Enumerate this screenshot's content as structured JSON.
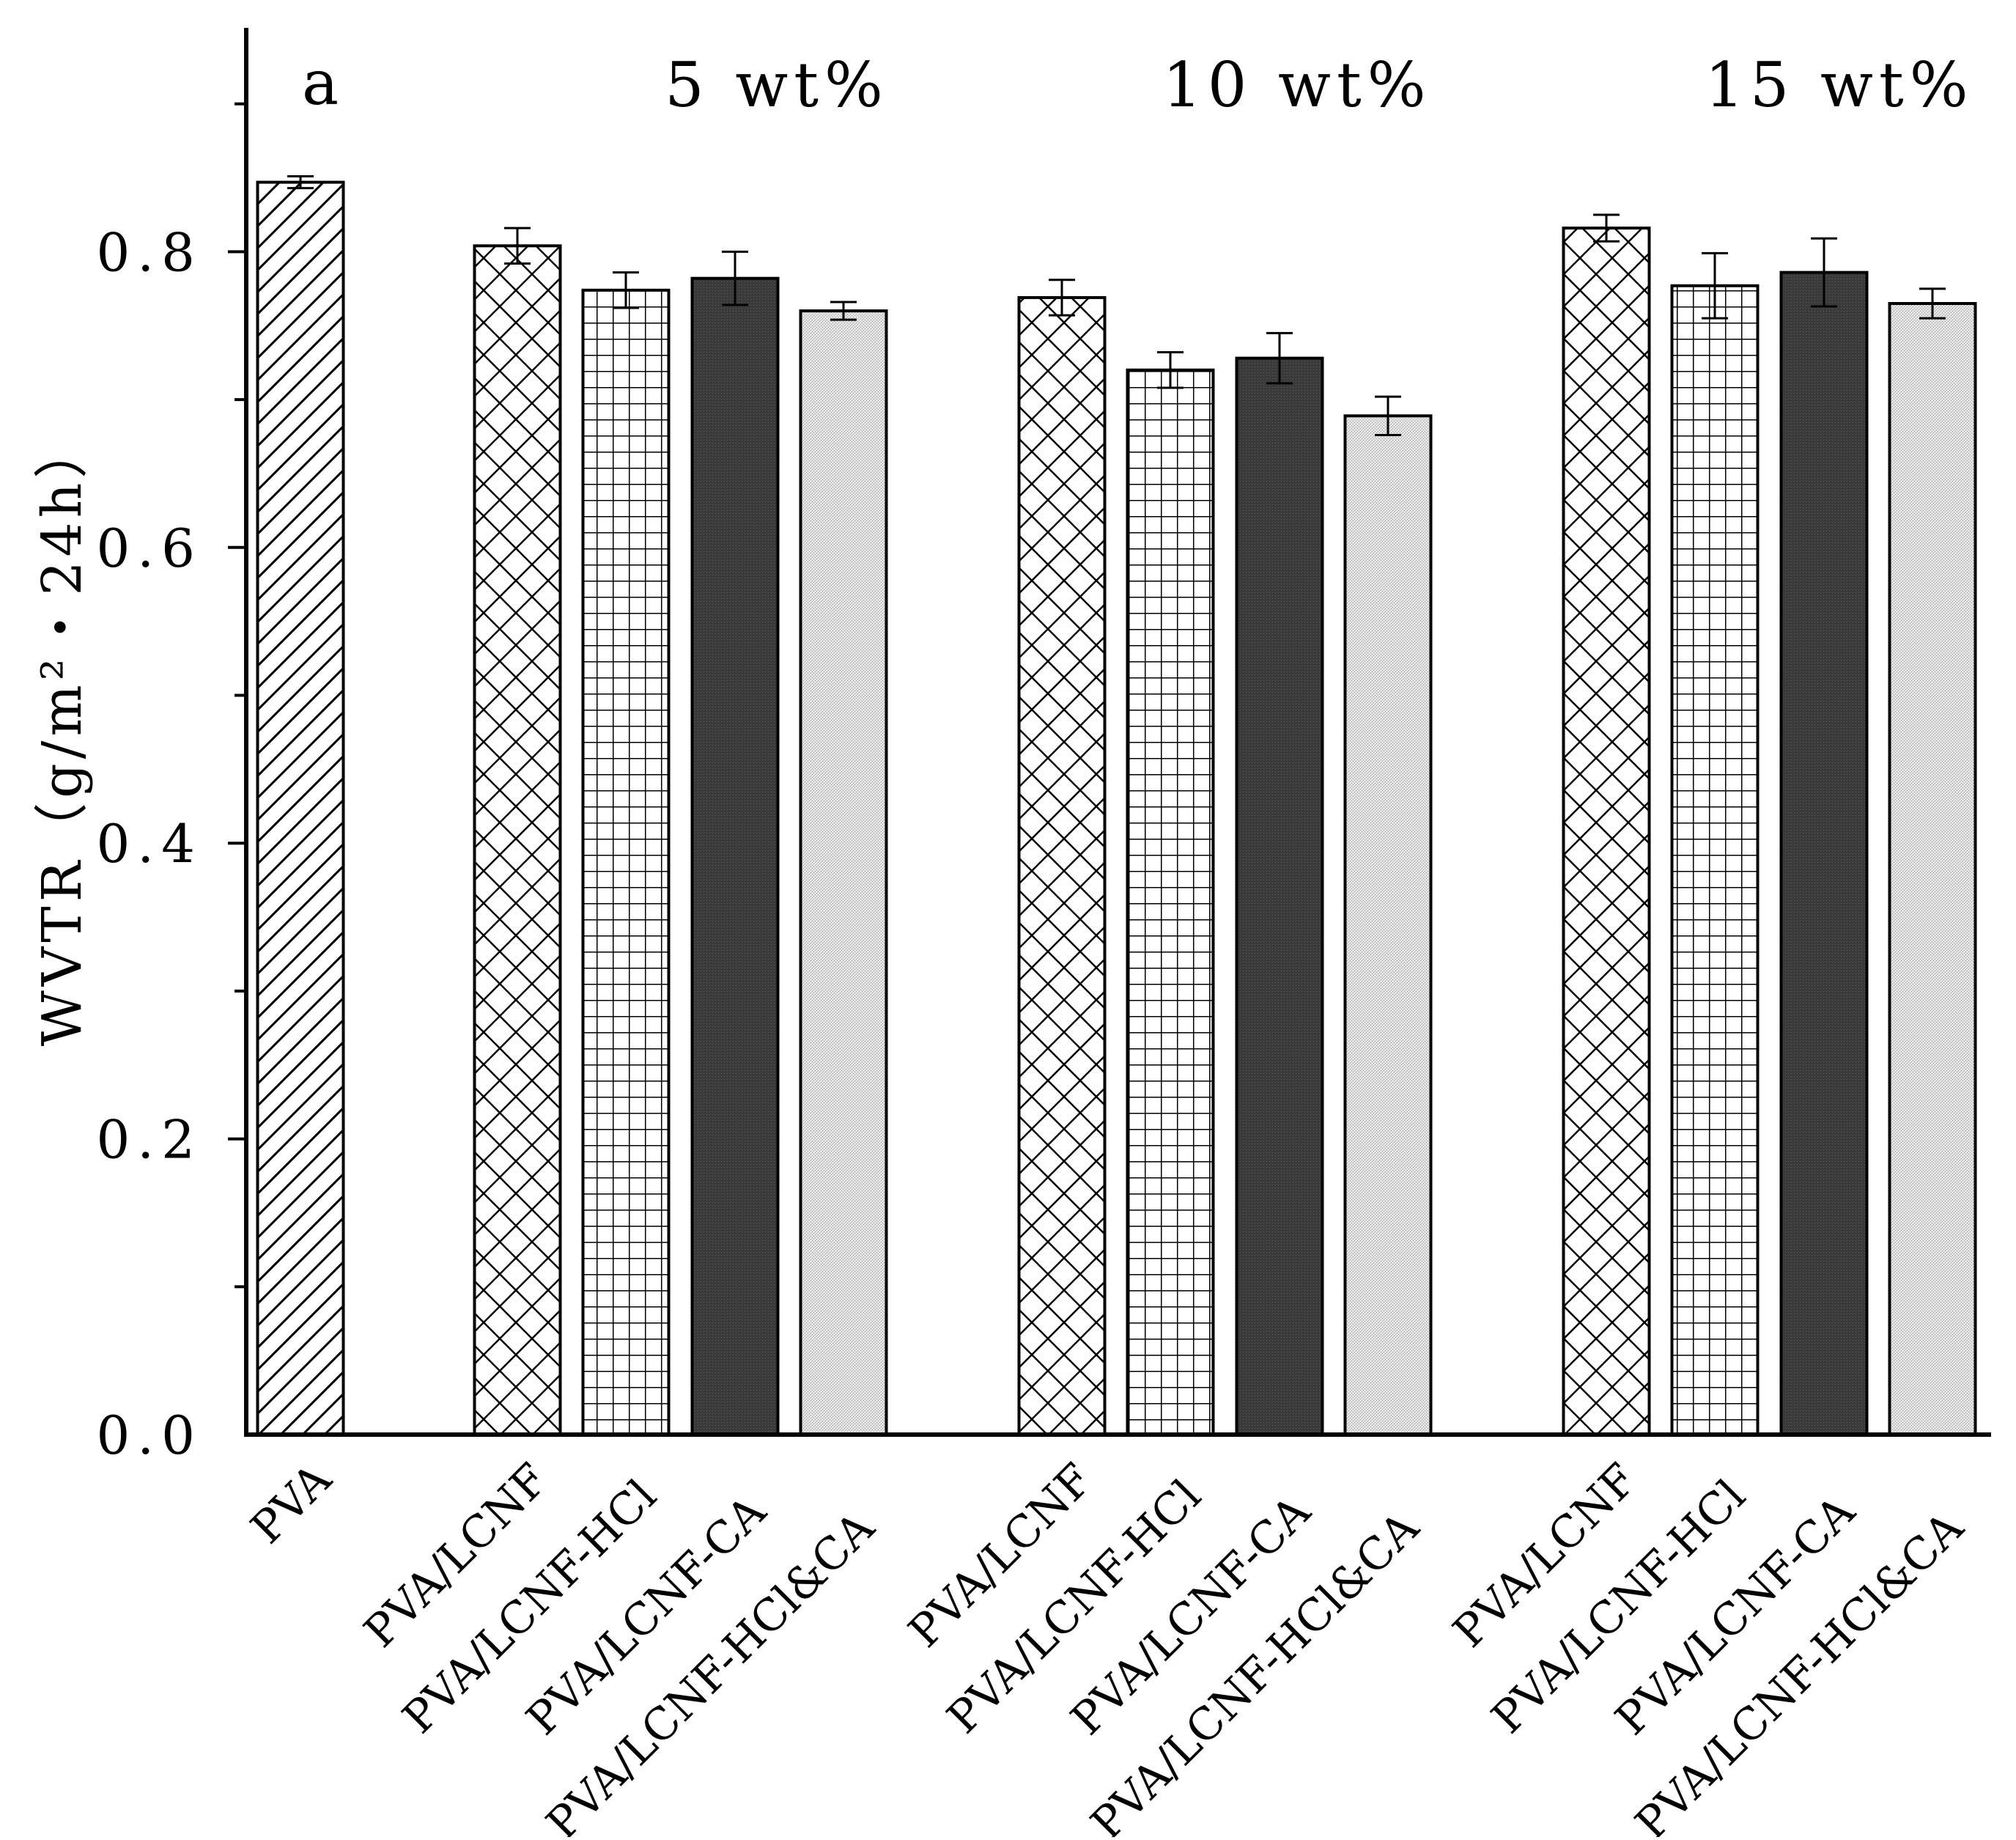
{
  "chart_data": {
    "type": "bar",
    "title": "",
    "panel_label": "a",
    "xlabel": "",
    "ylabel": "WVTR（g/m²・24h）",
    "ylim": [
      0,
      0.96
    ],
    "yticks": [
      0.0,
      0.2,
      0.4,
      0.6,
      0.8
    ],
    "ytick_labels": [
      "0.0",
      "0.2",
      "0.4",
      "0.6",
      "0.8"
    ],
    "grid": false,
    "error_bars": true,
    "group_labels": [
      "5 wt%",
      "10 wt%",
      "15 wt%"
    ],
    "categories": [
      "PVA",
      "PVA/LCNF",
      "PVA/LCNF-HCl",
      "PVA/LCNF-CA",
      "PVA/LCNF-HCl&CA",
      "PVA/LCNF",
      "PVA/LCNF-HCl",
      "PVA/LCNF-CA",
      "PVA/LCNF-HCl&CA",
      "PVA/LCNF",
      "PVA/LCNF-HCl",
      "PVA/LCNF-CA",
      "PVA/LCNF-HCl&CA"
    ],
    "groups": [
      "",
      "5 wt%",
      "5 wt%",
      "5 wt%",
      "5 wt%",
      "10 wt%",
      "10 wt%",
      "10 wt%",
      "10 wt%",
      "15 wt%",
      "15 wt%",
      "15 wt%",
      "15 wt%"
    ],
    "values": [
      0.847,
      0.804,
      0.774,
      0.782,
      0.76,
      0.769,
      0.72,
      0.728,
      0.689,
      0.816,
      0.777,
      0.786,
      0.765
    ],
    "errors": [
      0.004,
      0.012,
      0.012,
      0.018,
      0.006,
      0.012,
      0.012,
      0.017,
      0.013,
      0.009,
      0.022,
      0.023,
      0.01
    ],
    "patterns": [
      "diagonal",
      "crosshatch",
      "grid",
      "dense-dark",
      "dense-light",
      "crosshatch",
      "grid",
      "dense-dark",
      "dense-light",
      "crosshatch",
      "grid",
      "dense-dark",
      "dense-light"
    ]
  }
}
